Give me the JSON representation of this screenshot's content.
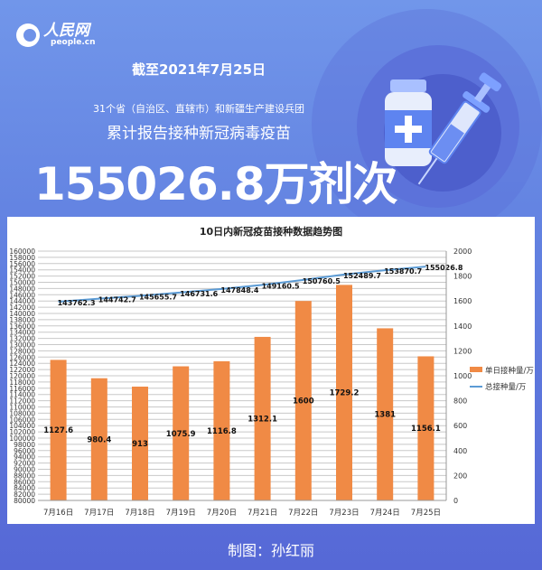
{
  "header": {
    "logo_cn": "人民网",
    "logo_en": "people.cn",
    "date": "截至2021年7月25日",
    "subtitle": "31个省（自治区、直辖市）和新疆生产建设兵团",
    "subtitle2": "累计报告接种新冠病毒疫苗",
    "total": "155026.8万剂次",
    "illustration": "vaccine-vial-and-syringe-icon"
  },
  "chart_data": {
    "type": "bar+line",
    "title": "10日内新冠疫苗接种数据趋势图",
    "categories": [
      "7月16日",
      "7月17日",
      "7月18日",
      "7月19日",
      "7月20日",
      "7月21日",
      "7月22日",
      "7月23日",
      "7月24日",
      "7月25日"
    ],
    "series": [
      {
        "name": "单日接种量/万",
        "type": "bar",
        "axis": "right",
        "color": "#f08a45",
        "values": [
          1127.6,
          980.4,
          913,
          1075.9,
          1116.8,
          1312.1,
          1600,
          1729.2,
          1381,
          1156.1
        ]
      },
      {
        "name": "总接种量/万",
        "type": "line",
        "axis": "left",
        "color": "#5b9bd5",
        "values": [
          143762.3,
          144742.7,
          145655.7,
          146731.6,
          147848.4,
          149160.5,
          150760.5,
          152489.7,
          153870.7,
          155026.8
        ]
      }
    ],
    "left_axis": {
      "min": 80000,
      "max": 160000,
      "step": 2000
    },
    "right_axis": {
      "min": 0,
      "max": 2000,
      "step": 200
    },
    "grid": true,
    "legend": "right"
  },
  "footer": "制图：孙红丽"
}
